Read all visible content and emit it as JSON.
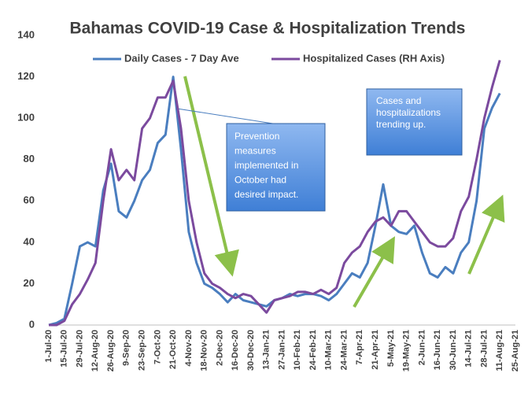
{
  "chart_data": {
    "type": "line",
    "title": "Bahamas COVID-19 Case & Hospitalization Trends",
    "categories": [
      "1-Jul-20",
      null,
      "15-Jul-20",
      null,
      "29-Jul-20",
      null,
      "12-Aug-20",
      null,
      "26-Aug-20",
      null,
      "9-Sep-20",
      null,
      "23-Sep-20",
      null,
      "7-Oct-20",
      null,
      "21-Oct-20",
      null,
      "4-Nov-20",
      null,
      "18-Nov-20",
      null,
      "2-Dec-20",
      null,
      "16-Dec-20",
      null,
      "30-Dec-20",
      null,
      "13-Jan-21",
      null,
      "27-Jan-21",
      null,
      "10-Feb-21",
      null,
      "24-Feb-21",
      null,
      "10-Mar-21",
      null,
      "24-Mar-21",
      null,
      "7-Apr-21",
      null,
      "21-Apr-21",
      null,
      "5-May-21",
      null,
      "19-May-21",
      null,
      "2-Jun-21",
      null,
      "16-Jun-21",
      null,
      "30-Jun-21",
      null,
      "14-Jul-21",
      null,
      "28-Jul-21",
      null,
      "11-Aug-21",
      null,
      "25-Aug-21"
    ],
    "series": [
      {
        "name": "Daily Cases - 7 Day Ave",
        "color": "#4a7ebf",
        "values": [
          0,
          1,
          3,
          20,
          38,
          40,
          38,
          65,
          78,
          55,
          52,
          60,
          70,
          75,
          88,
          92,
          120,
          85,
          45,
          30,
          20,
          18,
          15,
          11,
          15,
          12,
          11,
          10,
          9,
          12,
          13,
          15,
          14,
          15,
          15,
          14,
          12,
          15,
          20,
          25,
          23,
          30,
          48,
          68,
          48,
          45,
          44,
          48,
          35,
          25,
          23,
          28,
          25,
          35,
          40,
          60,
          95,
          105,
          112,
          null,
          null
        ]
      },
      {
        "name": "Hospitalized Cases (RH Axis)",
        "color": "#7b4a9e",
        "values": [
          0,
          0,
          2,
          10,
          15,
          22,
          30,
          60,
          85,
          70,
          75,
          70,
          95,
          100,
          110,
          110,
          118,
          95,
          60,
          40,
          25,
          20,
          18,
          15,
          13,
          15,
          14,
          10,
          6,
          12,
          13,
          14,
          16,
          16,
          15,
          17,
          15,
          18,
          30,
          35,
          38,
          45,
          50,
          52,
          48,
          55,
          55,
          50,
          45,
          40,
          38,
          38,
          42,
          55,
          62,
          80,
          100,
          115,
          128,
          null,
          null
        ]
      }
    ],
    "ylim": [
      0,
      140
    ],
    "yticks": [
      0,
      20,
      40,
      60,
      80,
      100,
      120,
      140
    ],
    "grid": false,
    "annotations": [
      {
        "lines": [
          "Prevention",
          "measures",
          "implemented in",
          "October had",
          "desired impact."
        ]
      },
      {
        "lines": [
          "Cases and",
          "hospitalizations",
          "trending up."
        ]
      }
    ]
  }
}
